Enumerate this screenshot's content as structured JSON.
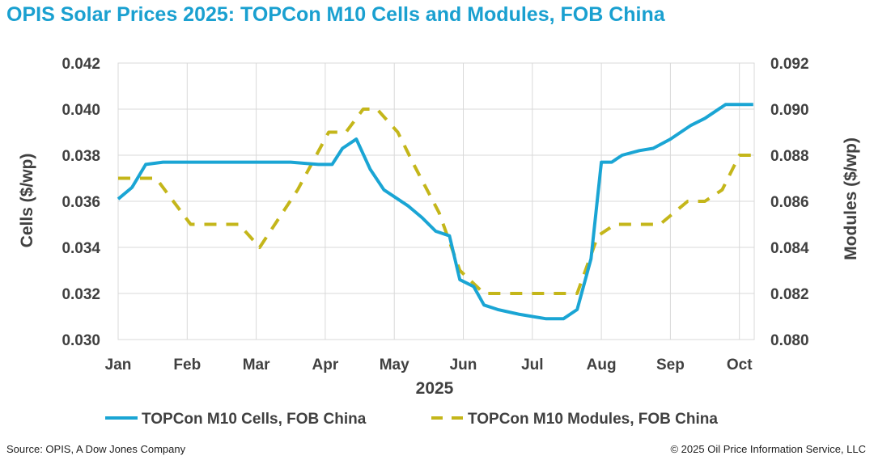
{
  "title": "OPIS Solar Prices 2025: TOPCon M10 Cells and Modules, FOB China",
  "footer": {
    "source": "Source: OPIS, A Dow Jones Company",
    "copyright": "© 2025 Oil Price Information Service, LLC"
  },
  "colors": {
    "title": "#1aa0d0",
    "cells": "#1aa5d4",
    "modules": "#c4b61a",
    "grid": "#d9d9d9",
    "text": "#404040"
  },
  "chart_data": {
    "type": "line",
    "title": "OPIS Solar Prices 2025: TOPCon M10 Cells and Modules, FOB China",
    "xlabel": "2025",
    "x_ticks": [
      "Jan",
      "Feb",
      "Mar",
      "Apr",
      "May",
      "Jun",
      "Jul",
      "Aug",
      "Sep",
      "Oct"
    ],
    "x_range": [
      0,
      9.2
    ],
    "y_left": {
      "label": "Cells ($/wp)",
      "range": [
        0.03,
        0.042
      ],
      "ticks": [
        "0.030",
        "0.032",
        "0.034",
        "0.036",
        "0.038",
        "0.040",
        "0.042"
      ]
    },
    "y_right": {
      "label": "Modules ($/wp)",
      "range": [
        0.08,
        0.092
      ],
      "ticks": [
        "0.080",
        "0.082",
        "0.084",
        "0.086",
        "0.088",
        "0.090",
        "0.092"
      ]
    },
    "grid": true,
    "legend_position": "bottom",
    "series": [
      {
        "name": "TOPCon M10 Cells, FOB China",
        "axis": "left",
        "style": "solid",
        "x": [
          0,
          0.2,
          0.4,
          0.65,
          1.0,
          1.5,
          2.0,
          2.5,
          2.9,
          3.1,
          3.25,
          3.45,
          3.65,
          3.85,
          4.0,
          4.2,
          4.4,
          4.6,
          4.8,
          4.95,
          5.15,
          5.3,
          5.5,
          5.8,
          6.2,
          6.45,
          6.65,
          6.85,
          7.0,
          7.15,
          7.3,
          7.55,
          7.75,
          8.0,
          8.3,
          8.5,
          8.8,
          9.0,
          9.2
        ],
        "values": [
          0.0361,
          0.0366,
          0.0376,
          0.0377,
          0.0377,
          0.0377,
          0.0377,
          0.0377,
          0.0376,
          0.0376,
          0.0383,
          0.0387,
          0.0374,
          0.0365,
          0.0362,
          0.0358,
          0.0353,
          0.0347,
          0.0345,
          0.0326,
          0.0323,
          0.0315,
          0.0313,
          0.0311,
          0.0309,
          0.0309,
          0.0313,
          0.0335,
          0.0377,
          0.0377,
          0.038,
          0.0382,
          0.0383,
          0.0387,
          0.0393,
          0.0396,
          0.0402,
          0.0402,
          0.0402
        ]
      },
      {
        "name": "TOPCon M10 Modules, FOB China",
        "axis": "right",
        "style": "dashed",
        "x": [
          0,
          0.55,
          0.8,
          1.05,
          1.4,
          1.75,
          2.05,
          2.6,
          3.05,
          3.3,
          3.55,
          3.75,
          4.05,
          4.3,
          4.65,
          4.95,
          5.3,
          6.0,
          6.65,
          6.95,
          7.2,
          7.55,
          7.85,
          8.05,
          8.25,
          8.5,
          8.75,
          9.0,
          9.2
        ],
        "values": [
          0.087,
          0.087,
          0.086,
          0.085,
          0.085,
          0.085,
          0.084,
          0.0865,
          0.089,
          0.089,
          0.09,
          0.09,
          0.089,
          0.0875,
          0.0855,
          0.083,
          0.082,
          0.082,
          0.082,
          0.0845,
          0.085,
          0.085,
          0.085,
          0.0855,
          0.086,
          0.086,
          0.0865,
          0.088,
          0.088
        ]
      }
    ]
  }
}
